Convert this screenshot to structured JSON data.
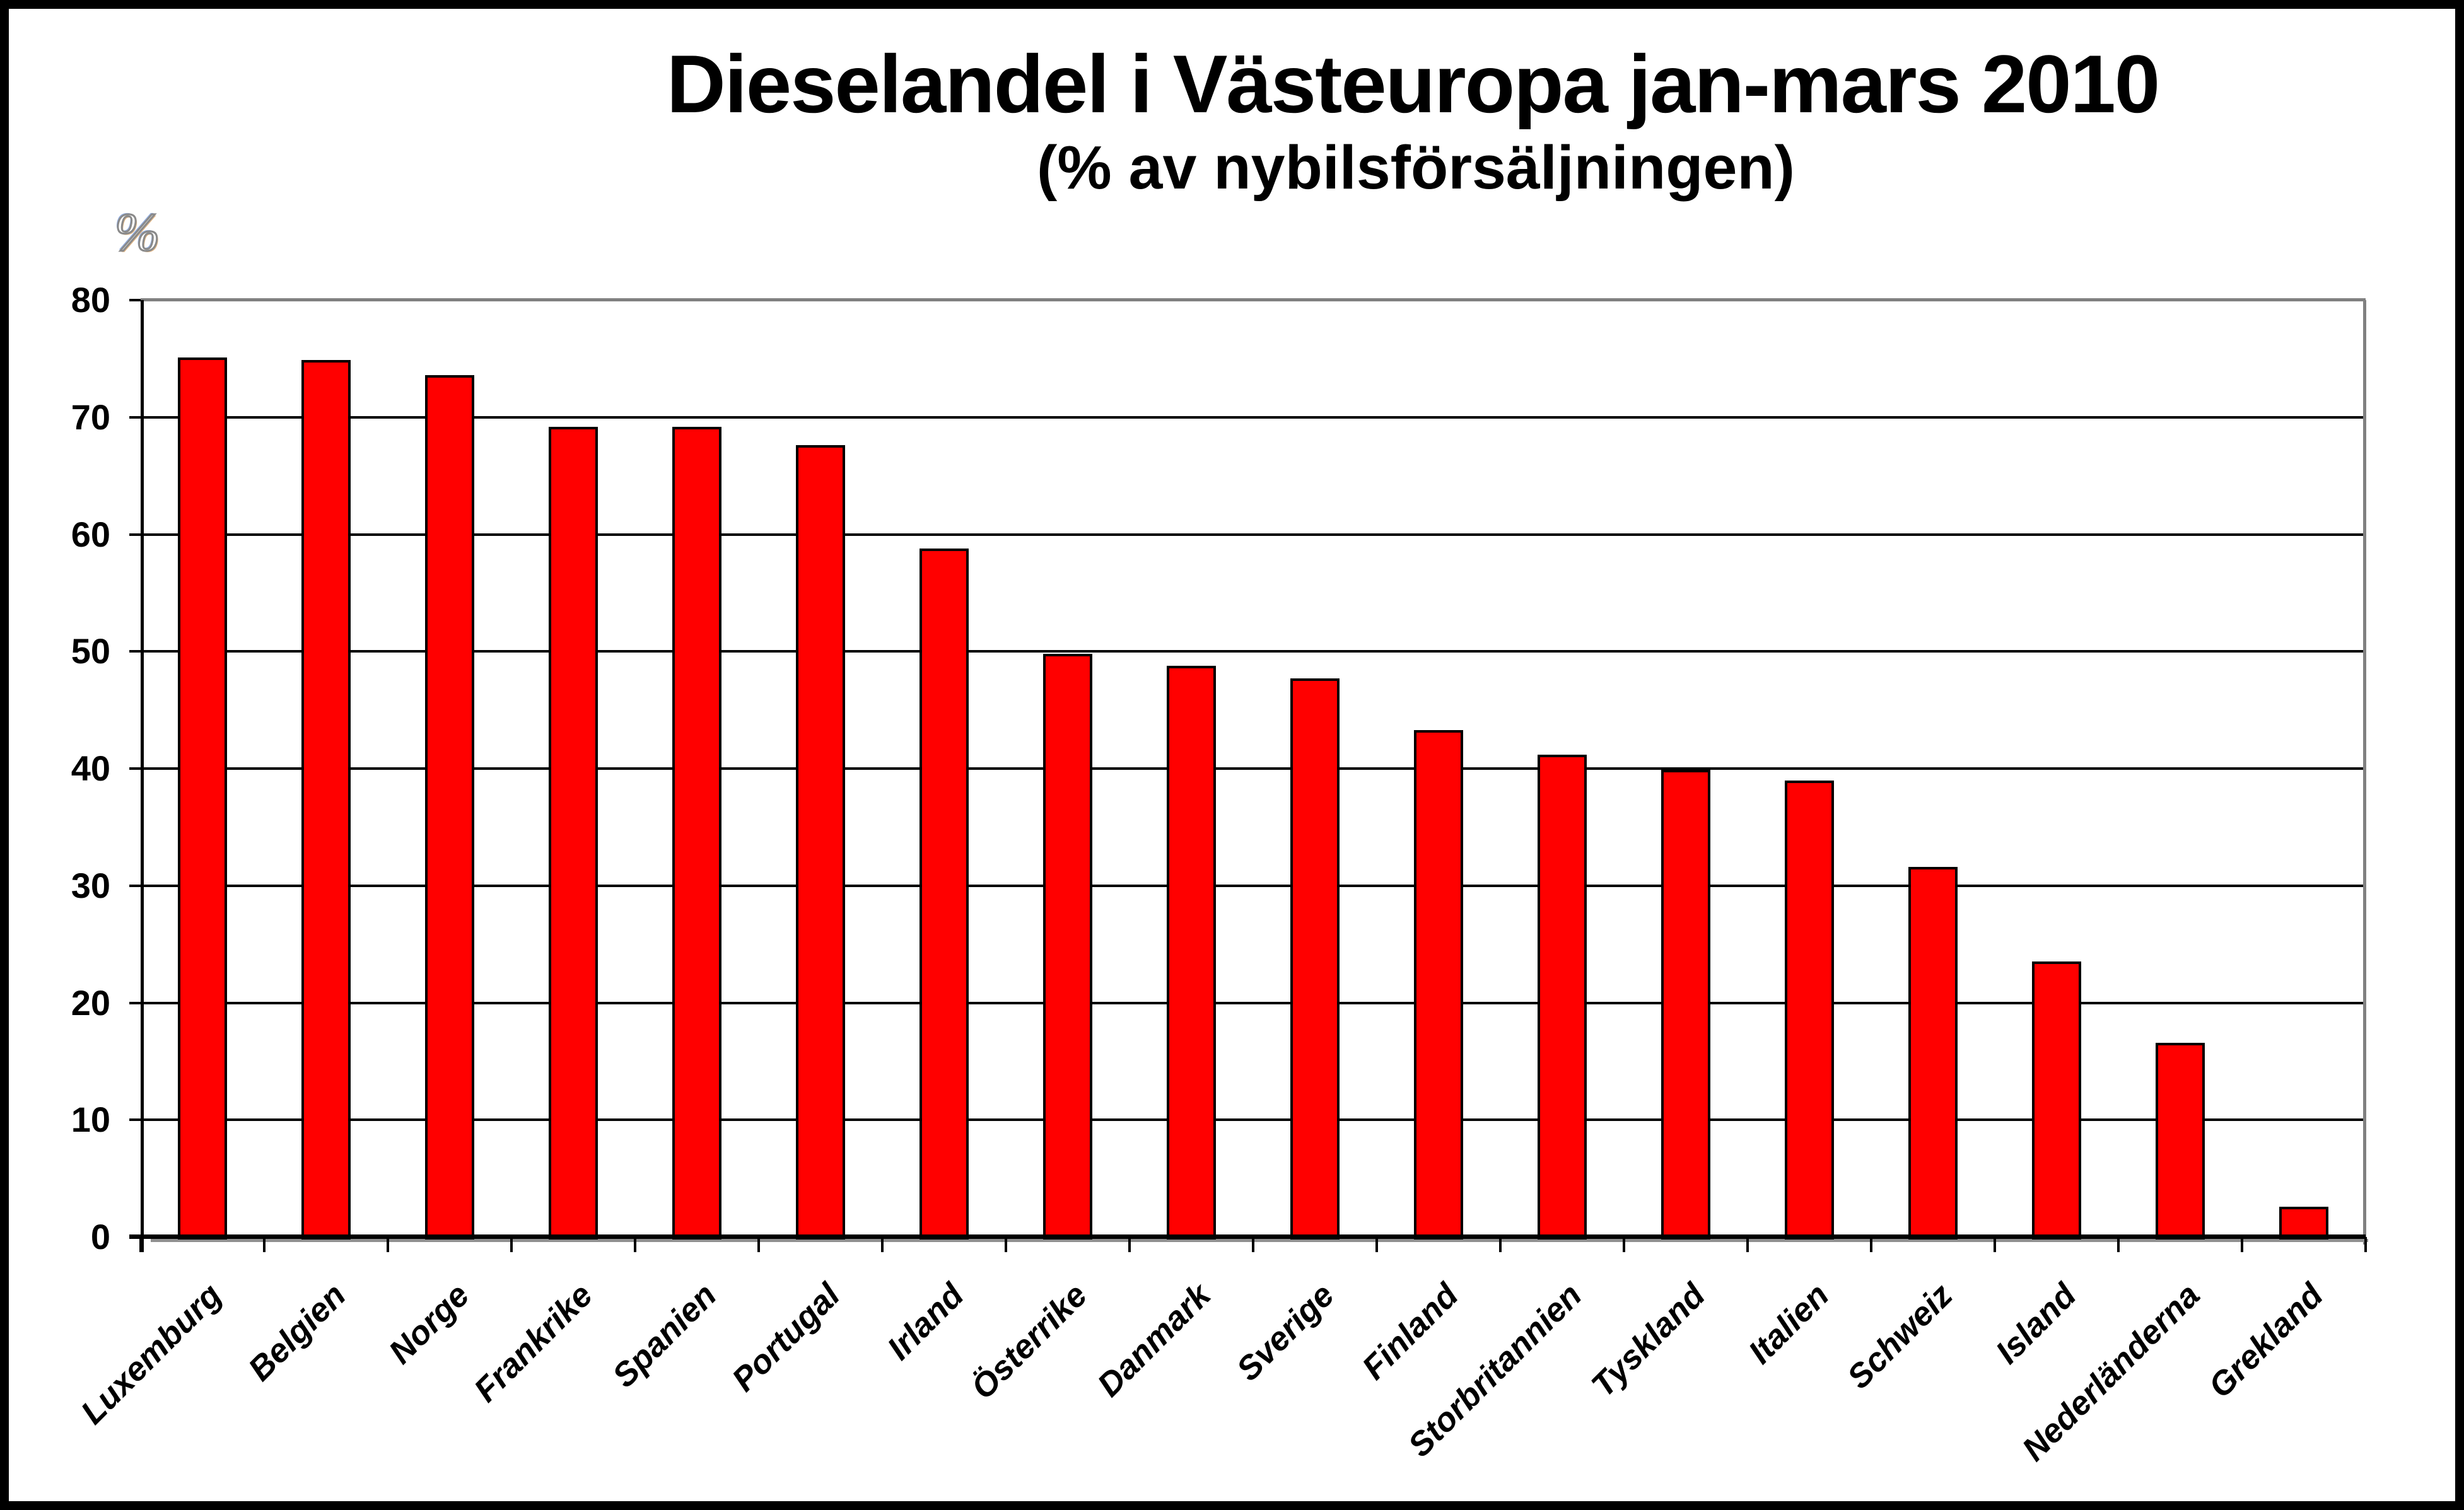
{
  "title": "Dieselandel i Västeuropa jan-mars 2010",
  "subtitle": "(% av nybilsförsäljningen)",
  "y_axis_unit": "%",
  "chart_data": {
    "type": "bar",
    "title": "Dieselandel i Västeuropa jan-mars 2010",
    "subtitle": "(% av nybilsförsäljningen)",
    "ylabel": "%",
    "xlabel": "",
    "ylim": [
      0,
      80
    ],
    "ytick_interval": 10,
    "yticks": [
      0,
      10,
      20,
      30,
      40,
      50,
      60,
      70,
      80
    ],
    "grid": "horizontal-major",
    "legend": "none",
    "bar_color": "#ff0000",
    "bar_border_color": "#000000",
    "gridline_color": "#000000",
    "frame_shadow_color": "#808080",
    "categories": [
      "Luxemburg",
      "Belgien",
      "Norge",
      "Frankrike",
      "Spanien",
      "Portugal",
      "Irland",
      "Österrike",
      "Danmark",
      "Sverige",
      "Finland",
      "Storbritannien",
      "Tyskland",
      "Italien",
      "Schweiz",
      "Island",
      "Nederländerna",
      "Grekland"
    ],
    "values": [
      75.1,
      74.9,
      73.6,
      69.2,
      69.2,
      67.6,
      58.8,
      49.8,
      48.8,
      47.7,
      43.3,
      41.2,
      39.9,
      39.0,
      31.6,
      23.5,
      16.6,
      2.6
    ]
  }
}
